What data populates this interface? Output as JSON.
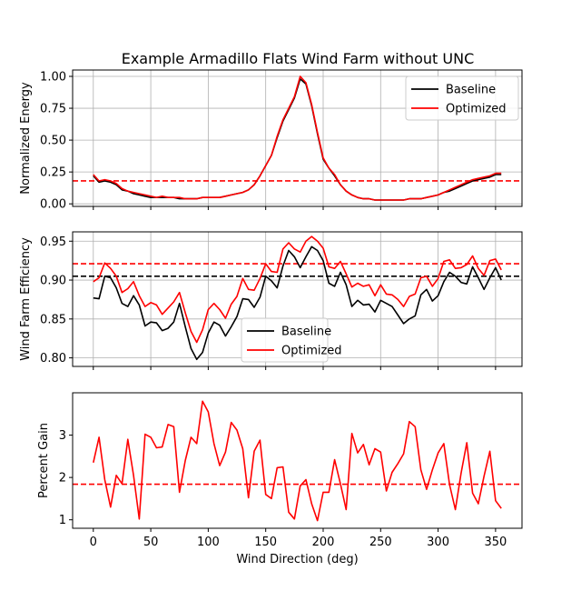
{
  "chart_data": [
    {
      "type": "line",
      "title": "Example Armadillo Flats Wind Farm without UNC",
      "xlabel": "",
      "ylabel": "Normalized Energy",
      "xlim": [
        -18,
        373
      ],
      "ylim": [
        -0.02,
        1.05
      ],
      "yticks": [
        "0.00",
        "0.25",
        "0.50",
        "0.75",
        "1.00"
      ],
      "xticks": [
        0,
        50,
        100,
        150,
        200,
        250,
        300,
        350
      ],
      "grid": true,
      "legend": {
        "placement": "top-right",
        "entries": [
          "Baseline",
          "Optimized"
        ]
      },
      "x": [
        0,
        5,
        10,
        15,
        20,
        25,
        30,
        35,
        40,
        45,
        50,
        55,
        60,
        65,
        70,
        75,
        80,
        85,
        90,
        95,
        100,
        105,
        110,
        115,
        120,
        125,
        130,
        135,
        140,
        145,
        150,
        155,
        160,
        165,
        170,
        175,
        180,
        185,
        190,
        195,
        200,
        205,
        210,
        215,
        220,
        225,
        230,
        235,
        240,
        245,
        250,
        255,
        260,
        265,
        270,
        275,
        280,
        285,
        290,
        295,
        300,
        305,
        310,
        315,
        320,
        325,
        330,
        335,
        340,
        345,
        350,
        355
      ],
      "series": [
        {
          "name": "Baseline",
          "color": "#000000",
          "values": [
            0.22,
            0.17,
            0.18,
            0.17,
            0.15,
            0.11,
            0.1,
            0.08,
            0.07,
            0.06,
            0.05,
            0.05,
            0.05,
            0.05,
            0.05,
            0.04,
            0.04,
            0.04,
            0.04,
            0.05,
            0.05,
            0.05,
            0.05,
            0.06,
            0.07,
            0.08,
            0.09,
            0.11,
            0.15,
            0.22,
            0.3,
            0.38,
            0.52,
            0.65,
            0.74,
            0.83,
            0.98,
            0.94,
            0.77,
            0.55,
            0.35,
            0.28,
            0.22,
            0.15,
            0.1,
            0.07,
            0.05,
            0.04,
            0.04,
            0.03,
            0.03,
            0.03,
            0.03,
            0.03,
            0.03,
            0.04,
            0.04,
            0.04,
            0.05,
            0.06,
            0.07,
            0.09,
            0.1,
            0.12,
            0.14,
            0.16,
            0.18,
            0.19,
            0.2,
            0.21,
            0.23,
            0.23
          ]
        },
        {
          "name": "Optimized",
          "color": "#ff0000",
          "values": [
            0.23,
            0.18,
            0.19,
            0.18,
            0.16,
            0.12,
            0.1,
            0.09,
            0.08,
            0.07,
            0.06,
            0.05,
            0.06,
            0.05,
            0.05,
            0.05,
            0.04,
            0.04,
            0.04,
            0.05,
            0.05,
            0.05,
            0.05,
            0.06,
            0.07,
            0.08,
            0.09,
            0.11,
            0.15,
            0.22,
            0.3,
            0.38,
            0.53,
            0.66,
            0.75,
            0.84,
            1.0,
            0.95,
            0.78,
            0.56,
            0.36,
            0.28,
            0.23,
            0.15,
            0.1,
            0.07,
            0.05,
            0.04,
            0.04,
            0.03,
            0.03,
            0.03,
            0.03,
            0.03,
            0.03,
            0.04,
            0.04,
            0.04,
            0.05,
            0.06,
            0.07,
            0.09,
            0.11,
            0.13,
            0.15,
            0.17,
            0.19,
            0.2,
            0.21,
            0.22,
            0.24,
            0.24
          ]
        }
      ],
      "reference_lines": [
        {
          "y": 0.18,
          "color": "#ff0000",
          "style": "dashed"
        }
      ]
    },
    {
      "type": "line",
      "title": "",
      "xlabel": "",
      "ylabel": "Wind Farm Efficiency",
      "xlim": [
        -18,
        373
      ],
      "ylim": [
        0.789,
        0.962
      ],
      "yticks": [
        "0.80",
        "0.85",
        "0.90",
        "0.95"
      ],
      "xticks": [
        0,
        50,
        100,
        150,
        200,
        250,
        300,
        350
      ],
      "grid": true,
      "legend": {
        "placement": "lower-center",
        "entries": [
          "Baseline",
          "Optimized"
        ]
      },
      "x": [
        0,
        5,
        10,
        15,
        20,
        25,
        30,
        35,
        40,
        45,
        50,
        55,
        60,
        65,
        70,
        75,
        80,
        85,
        90,
        95,
        100,
        105,
        110,
        115,
        120,
        125,
        130,
        135,
        140,
        145,
        150,
        155,
        160,
        165,
        170,
        175,
        180,
        185,
        190,
        195,
        200,
        205,
        210,
        215,
        220,
        225,
        230,
        235,
        240,
        245,
        250,
        255,
        260,
        265,
        270,
        275,
        280,
        285,
        290,
        295,
        300,
        305,
        310,
        315,
        320,
        325,
        330,
        335,
        340,
        345,
        350,
        355
      ],
      "series": [
        {
          "name": "Baseline",
          "color": "#000000",
          "values": [
            0.877,
            0.876,
            0.905,
            0.903,
            0.89,
            0.87,
            0.866,
            0.88,
            0.868,
            0.841,
            0.846,
            0.845,
            0.835,
            0.838,
            0.846,
            0.87,
            0.84,
            0.812,
            0.798,
            0.807,
            0.832,
            0.846,
            0.842,
            0.828,
            0.84,
            0.853,
            0.876,
            0.875,
            0.865,
            0.878,
            0.905,
            0.899,
            0.89,
            0.918,
            0.938,
            0.93,
            0.916,
            0.93,
            0.943,
            0.938,
            0.925,
            0.896,
            0.892,
            0.91,
            0.894,
            0.866,
            0.874,
            0.868,
            0.869,
            0.859,
            0.874,
            0.87,
            0.866,
            0.855,
            0.844,
            0.85,
            0.854,
            0.881,
            0.888,
            0.873,
            0.88,
            0.898,
            0.91,
            0.905,
            0.897,
            0.895,
            0.917,
            0.903,
            0.888,
            0.903,
            0.916,
            0.9
          ]
        },
        {
          "name": "Optimized",
          "color": "#ff0000",
          "values": [
            0.898,
            0.903,
            0.922,
            0.915,
            0.905,
            0.884,
            0.889,
            0.898,
            0.88,
            0.866,
            0.871,
            0.868,
            0.856,
            0.864,
            0.872,
            0.884,
            0.858,
            0.834,
            0.82,
            0.836,
            0.862,
            0.87,
            0.862,
            0.851,
            0.869,
            0.879,
            0.902,
            0.888,
            0.887,
            0.902,
            0.921,
            0.911,
            0.91,
            0.94,
            0.948,
            0.94,
            0.936,
            0.95,
            0.956,
            0.95,
            0.941,
            0.917,
            0.915,
            0.924,
            0.908,
            0.891,
            0.896,
            0.892,
            0.894,
            0.88,
            0.894,
            0.882,
            0.881,
            0.875,
            0.866,
            0.879,
            0.882,
            0.903,
            0.905,
            0.892,
            0.902,
            0.924,
            0.926,
            0.915,
            0.916,
            0.92,
            0.931,
            0.915,
            0.906,
            0.925,
            0.927,
            0.913
          ]
        }
      ],
      "reference_lines": [
        {
          "y": 0.905,
          "color": "#000000",
          "style": "dashed"
        },
        {
          "y": 0.921,
          "color": "#ff0000",
          "style": "dashed"
        }
      ]
    },
    {
      "type": "line",
      "title": "",
      "xlabel": "Wind Direction (deg)",
      "ylabel": "Percent Gain",
      "xlim": [
        -18,
        373
      ],
      "ylim": [
        0.8,
        4.0
      ],
      "yticks": [
        "1",
        "2",
        "3"
      ],
      "xticks": [
        0,
        50,
        100,
        150,
        200,
        250,
        300,
        350
      ],
      "grid": false,
      "x": [
        0,
        5,
        10,
        15,
        20,
        25,
        30,
        35,
        40,
        45,
        50,
        55,
        60,
        65,
        70,
        75,
        80,
        85,
        90,
        95,
        100,
        105,
        110,
        115,
        120,
        125,
        130,
        135,
        140,
        145,
        150,
        155,
        160,
        165,
        170,
        175,
        180,
        185,
        190,
        195,
        200,
        205,
        210,
        215,
        220,
        225,
        230,
        235,
        240,
        245,
        250,
        255,
        260,
        265,
        270,
        275,
        280,
        285,
        290,
        295,
        300,
        305,
        310,
        315,
        320,
        325,
        330,
        335,
        340,
        345,
        350,
        355
      ],
      "series": [
        {
          "name": "",
          "color": "#ff0000",
          "values": [
            2.35,
            2.95,
            1.95,
            1.3,
            2.05,
            1.85,
            2.9,
            2.05,
            1.02,
            3.02,
            2.95,
            2.7,
            2.72,
            3.25,
            3.2,
            1.65,
            2.4,
            2.95,
            2.8,
            3.8,
            3.55,
            2.8,
            2.28,
            2.6,
            3.3,
            3.12,
            2.68,
            1.52,
            2.62,
            2.88,
            1.6,
            1.5,
            2.23,
            2.25,
            1.18,
            1.02,
            1.8,
            1.95,
            1.38,
            0.98,
            1.65,
            1.65,
            2.42,
            1.85,
            1.24,
            3.04,
            2.58,
            2.78,
            2.3,
            2.68,
            2.6,
            1.68,
            2.12,
            2.33,
            2.56,
            3.32,
            3.2,
            2.18,
            1.72,
            2.18,
            2.58,
            2.8,
            1.83,
            1.24,
            2.1,
            2.82,
            1.63,
            1.38,
            2.03,
            2.62,
            1.45,
            1.27
          ]
        }
      ],
      "reference_lines": [
        {
          "y": 1.84,
          "color": "#ff0000",
          "style": "dashed"
        }
      ]
    }
  ]
}
